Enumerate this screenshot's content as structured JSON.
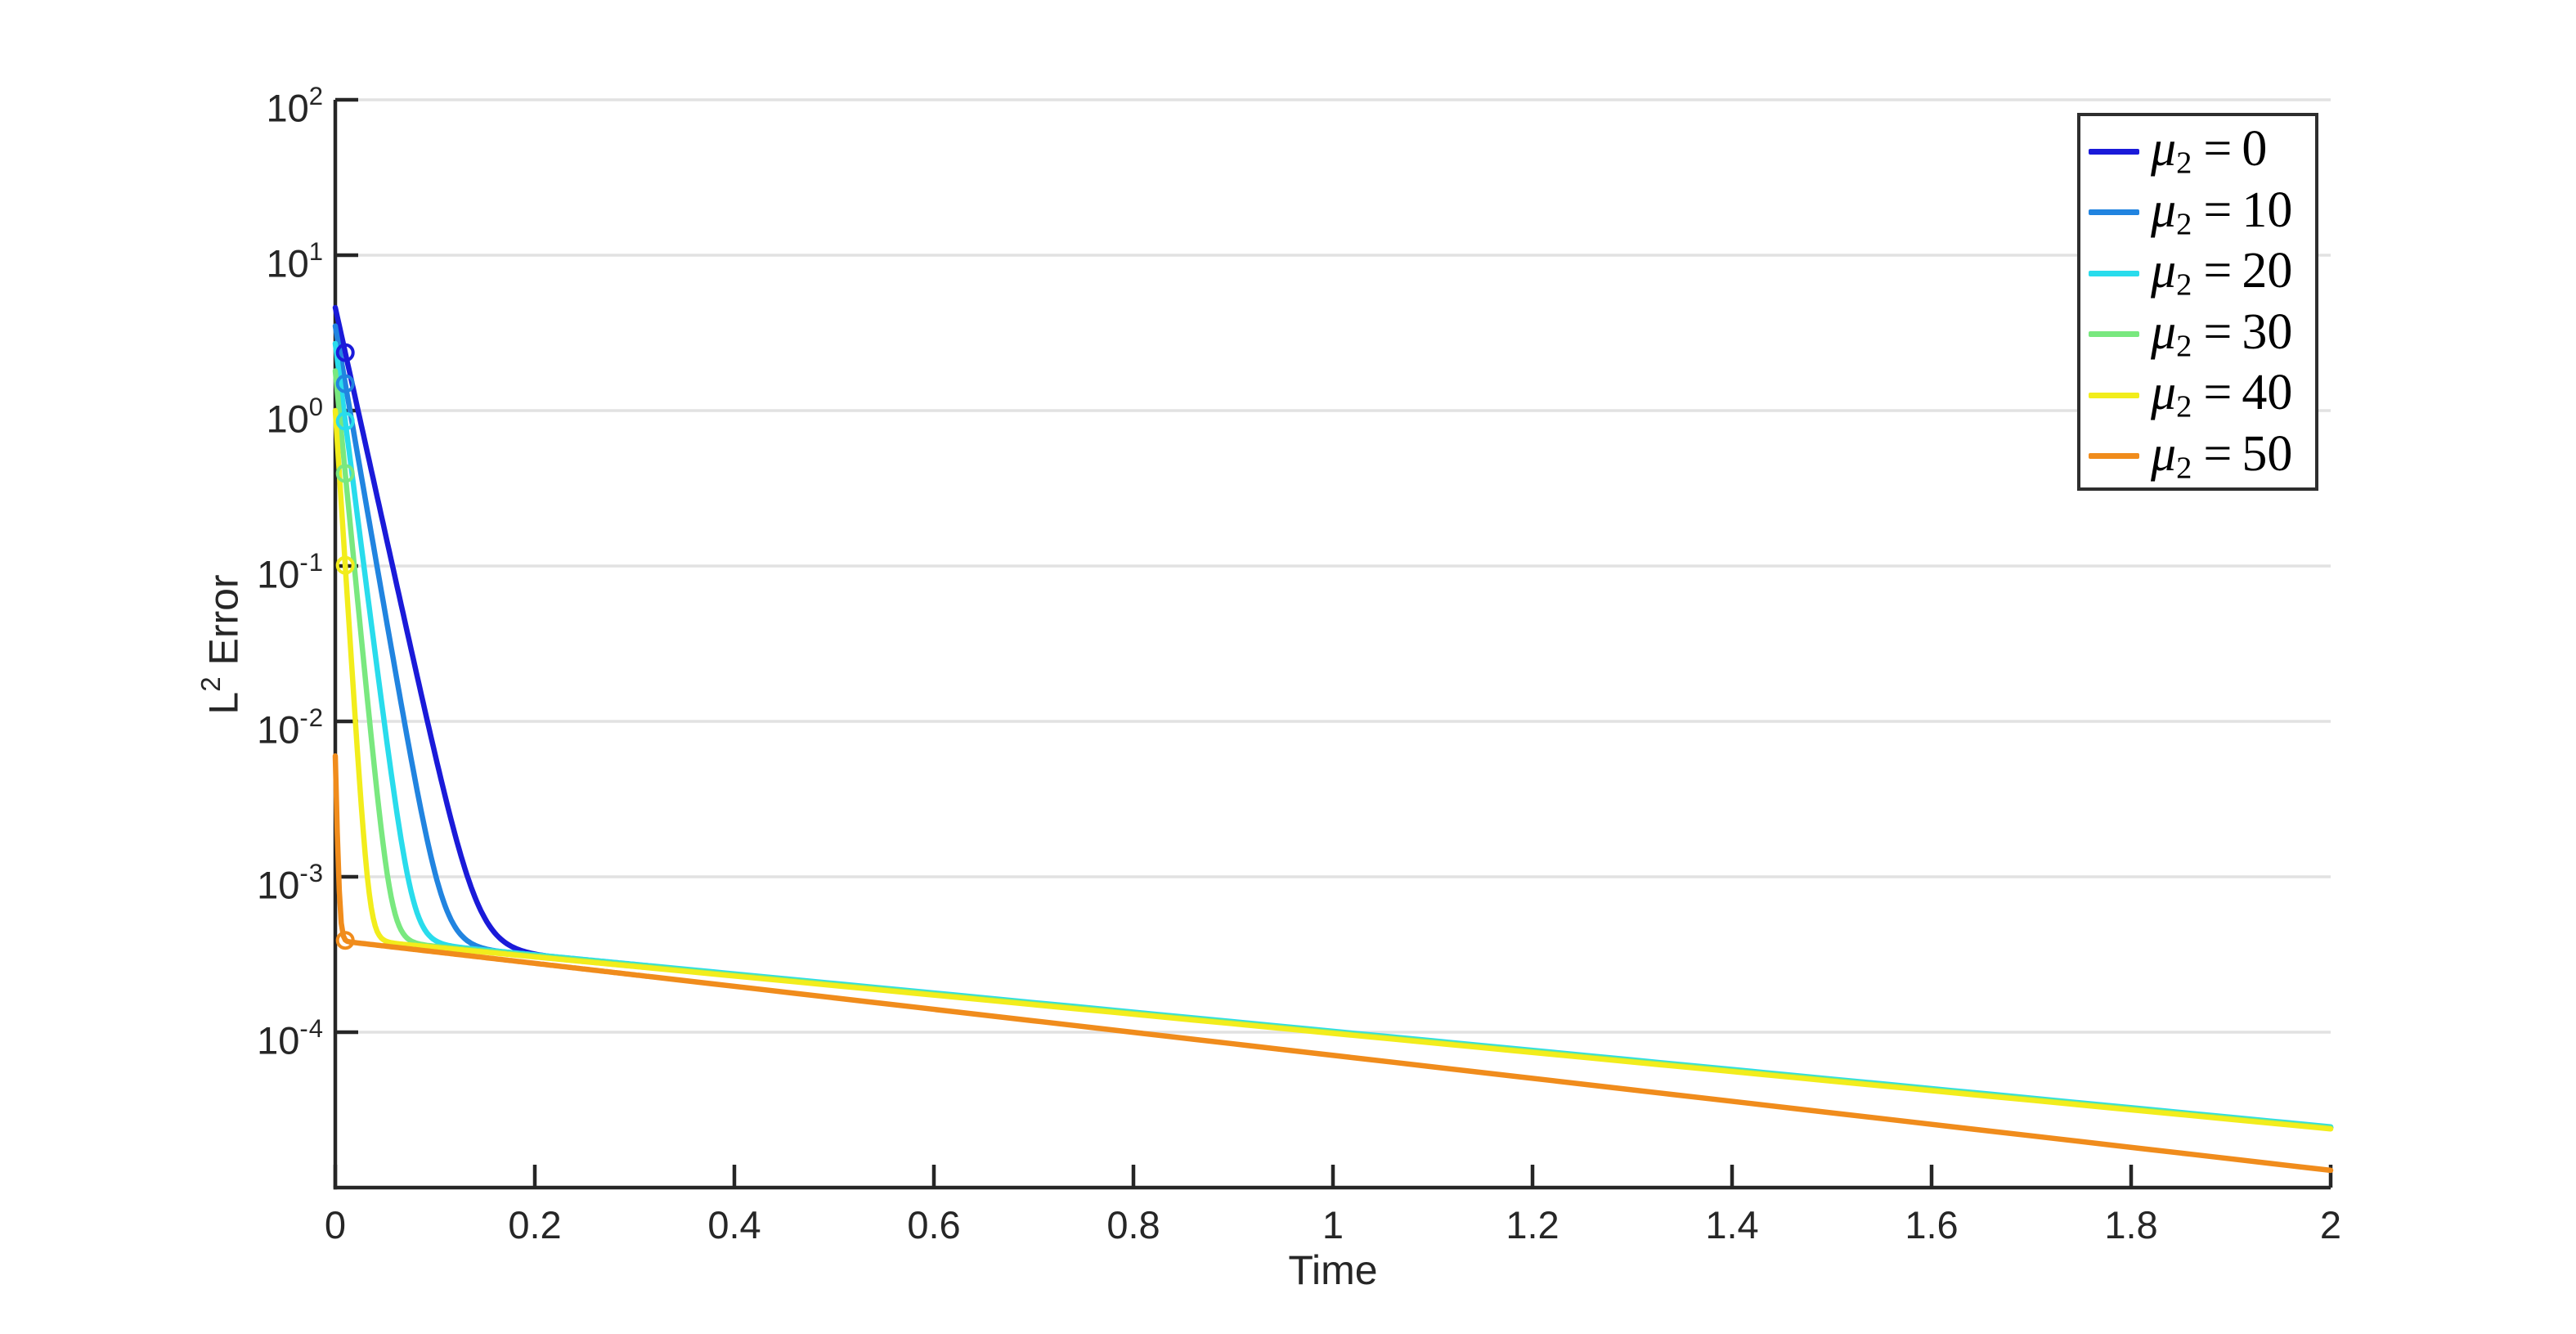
{
  "axes": {
    "xlabel": "Time",
    "ylabel_base": "L",
    "ylabel_sup": "2",
    "ylabel_rest": " Error",
    "axis_color": "#262626",
    "grid_color": "#e2e2e2",
    "x_ticks": [
      {
        "value": 0,
        "label": "0"
      },
      {
        "value": 0.2,
        "label": "0.2"
      },
      {
        "value": 0.4,
        "label": "0.4"
      },
      {
        "value": 0.6,
        "label": "0.6"
      },
      {
        "value": 0.8,
        "label": "0.8"
      },
      {
        "value": 1,
        "label": "1"
      },
      {
        "value": 1.2,
        "label": "1.2"
      },
      {
        "value": 1.4,
        "label": "1.4"
      },
      {
        "value": 1.6,
        "label": "1.6"
      },
      {
        "value": 1.8,
        "label": "1.8"
      },
      {
        "value": 2,
        "label": "2"
      }
    ],
    "y_ticks": [
      {
        "value": 100,
        "base": "10",
        "exp": "2"
      },
      {
        "value": 10,
        "base": "10",
        "exp": "1"
      },
      {
        "value": 1,
        "base": "10",
        "exp": "0"
      },
      {
        "value": 0.1,
        "base": "10",
        "exp": "-1"
      },
      {
        "value": 0.01,
        "base": "10",
        "exp": "-2"
      },
      {
        "value": 0.001,
        "base": "10",
        "exp": "-3"
      },
      {
        "value": 0.0001,
        "base": "10",
        "exp": "-4"
      }
    ]
  },
  "legend": {
    "position": "upper right",
    "entries": [
      {
        "symbol": "μ",
        "sub": "2",
        "eq": "=",
        "value": "0",
        "color": "#1a1ad9"
      },
      {
        "symbol": "μ",
        "sub": "2",
        "eq": "=",
        "value": "10",
        "color": "#2184e0"
      },
      {
        "symbol": "μ",
        "sub": "2",
        "eq": "=",
        "value": "20",
        "color": "#29dcec"
      },
      {
        "symbol": "μ",
        "sub": "2",
        "eq": "=",
        "value": "30",
        "color": "#79e87f"
      },
      {
        "symbol": "μ",
        "sub": "2",
        "eq": "=",
        "value": "40",
        "color": "#f2ed1c"
      },
      {
        "symbol": "μ",
        "sub": "2",
        "eq": "=",
        "value": "50",
        "color": "#f08c1c"
      }
    ]
  },
  "chart_data": {
    "type": "line",
    "title": "",
    "xlabel": "Time",
    "ylabel": "L^2 Error",
    "x_range": [
      0,
      2
    ],
    "y_range": [
      1e-05,
      100
    ],
    "y_scale": "log10",
    "grid": "horizontal",
    "legend_position": "upper right",
    "series": [
      {
        "name": "mu2=0",
        "label": "μ2 = 0",
        "color": "#1a1ad9",
        "model": {
          "E0": 4.6,
          "rate": 29,
          "floor_A": 0.000413,
          "floor_s": 0.615
        },
        "marker": {
          "t": 0.01,
          "value": 2.36
        },
        "points": [
          [
            0,
            4.6
          ],
          [
            0.01,
            2.36
          ],
          [
            0.05,
            0.164
          ],
          [
            0.1,
            0.0058
          ],
          [
            0.15,
            0.00054
          ],
          [
            0.2,
            0.00032
          ],
          [
            0.5,
            0.000203
          ],
          [
            1,
            0.0001
          ],
          [
            1.5,
            4.93e-05
          ],
          [
            2,
            2.43e-05
          ]
        ]
      },
      {
        "name": "mu2=10",
        "label": "μ2 = 10",
        "color": "#2184e0",
        "model": {
          "E0": 3.5,
          "rate": 37,
          "floor_A": 0.000414,
          "floor_s": 0.615
        },
        "marker": {
          "t": 0.01,
          "value": 1.49
        },
        "points": [
          [
            0,
            3.5
          ],
          [
            0.01,
            1.49
          ],
          [
            0.05,
            0.0495
          ],
          [
            0.1,
            0.00106
          ],
          [
            0.15,
            0.00035
          ],
          [
            0.2,
            0.000312
          ],
          [
            0.5,
            0.000204
          ],
          [
            1,
            0.0001
          ],
          [
            1.5,
            4.94e-05
          ],
          [
            2,
            2.43e-05
          ]
        ]
      },
      {
        "name": "mu2=20",
        "label": "μ2 = 20",
        "color": "#29dcec",
        "model": {
          "E0": 2.7,
          "rate": 50,
          "floor_A": 0.000418,
          "floor_s": 0.615
        },
        "marker": {
          "t": 0.01,
          "value": 0.855
        },
        "points": [
          [
            0,
            2.7
          ],
          [
            0.01,
            0.855
          ],
          [
            0.05,
            0.0089
          ],
          [
            0.1,
            0.00039
          ],
          [
            0.2,
            0.000315
          ],
          [
            0.5,
            0.000206
          ],
          [
            1,
            0.000101
          ],
          [
            1.5,
            4.99e-05
          ],
          [
            2,
            2.46e-05
          ]
        ]
      },
      {
        "name": "mu2=30",
        "label": "μ2 = 30",
        "color": "#79e87f",
        "model": {
          "E0": 1.8,
          "rate": 66,
          "floor_A": 0.000411,
          "floor_s": 0.615
        },
        "marker": {
          "t": 0.01,
          "value": 0.394
        },
        "points": [
          [
            0,
            1.8
          ],
          [
            0.01,
            0.394
          ],
          [
            0.05,
            0.00128
          ],
          [
            0.1,
            0.000357
          ],
          [
            0.2,
            0.00031
          ],
          [
            0.5,
            0.000202
          ],
          [
            1,
            9.97e-05
          ],
          [
            1.5,
            4.91e-05
          ],
          [
            2,
            2.42e-05
          ]
        ]
      },
      {
        "name": "mu2=40",
        "label": "μ2 = 40",
        "color": "#f2ed1c",
        "model": {
          "E0": 1.0,
          "rate": 100,
          "floor_A": 0.000405,
          "floor_s": 0.615
        },
        "marker": {
          "t": 0.01,
          "value": 0.101
        },
        "points": [
          [
            0,
            1.0
          ],
          [
            0.01,
            0.101
          ],
          [
            0.05,
            0.00039
          ],
          [
            0.1,
            0.000351
          ],
          [
            0.2,
            0.000305
          ],
          [
            0.5,
            0.000199
          ],
          [
            1,
            9.82e-05
          ],
          [
            1.5,
            4.84e-05
          ],
          [
            2,
            2.38e-05
          ]
        ]
      },
      {
        "name": "mu2=50",
        "label": "μ2 = 50",
        "color": "#f08c1c",
        "model": {
          "E0": 0.0056,
          "rate": 280,
          "floor_A": 0.00039,
          "floor_s": 0.74
        },
        "marker": {
          "t": 0.01,
          "value": 0.00039
        },
        "points": [
          [
            0,
            0.006
          ],
          [
            0.01,
            0.000392
          ],
          [
            0.05,
            0.000358
          ],
          [
            0.1,
            0.000329
          ],
          [
            0.2,
            0.000277
          ],
          [
            0.5,
            0.000166
          ],
          [
            1,
            7.1e-05
          ],
          [
            1.5,
            3.03e-05
          ],
          [
            2,
            1.29e-05
          ]
        ]
      }
    ]
  }
}
